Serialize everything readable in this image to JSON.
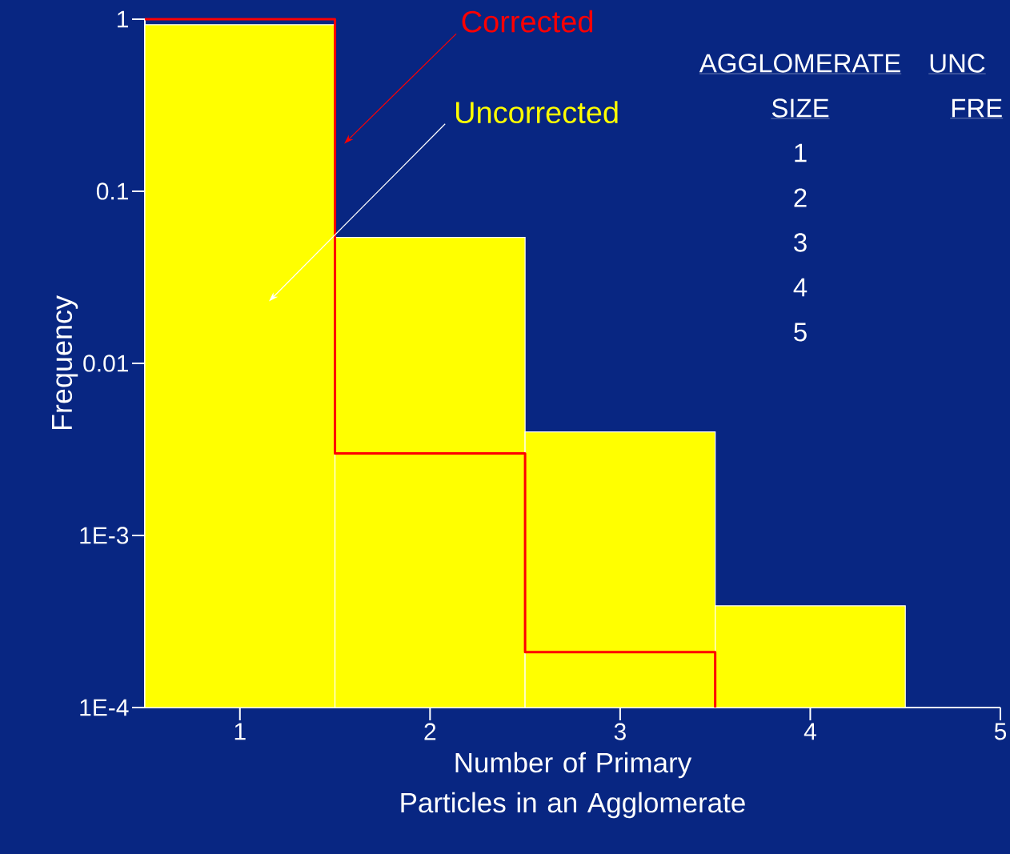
{
  "chart_data": {
    "type": "bar",
    "xlabel": "Number of Primary Particles in an Agglomerate",
    "ylabel": "Frequency",
    "log": "y",
    "xlim": [
      0.5,
      5
    ],
    "xticks": [
      1,
      2,
      3,
      4,
      5
    ],
    "ylim": [
      0.0001,
      1
    ],
    "yticks": [
      1,
      0.1,
      0.01,
      {
        "value": 0.001,
        "label": "1E-3"
      },
      {
        "value": 0.0001,
        "label": "1E-4"
      }
    ],
    "series": [
      {
        "color": "#ffff00",
        "x": [
          1,
          2,
          3,
          4
        ],
        "values": [
          0.93,
          0.054,
          0.004,
          0.00039
        ]
      },
      {
        "type": "step",
        "color": "#ff0000",
        "x": [
          0.5,
          1.5,
          2.5,
          3.5
        ],
        "values": [
          1,
          0.003,
          0.00021,
          0.0001
        ]
      }
    ],
    "annotations": [
      "Uncorrected",
      "Corrected",
      "AGGLOMERATE",
      "SIZE",
      "1",
      "2",
      "3",
      "4",
      "5",
      "UNC",
      "FRE"
    ]
  }
}
